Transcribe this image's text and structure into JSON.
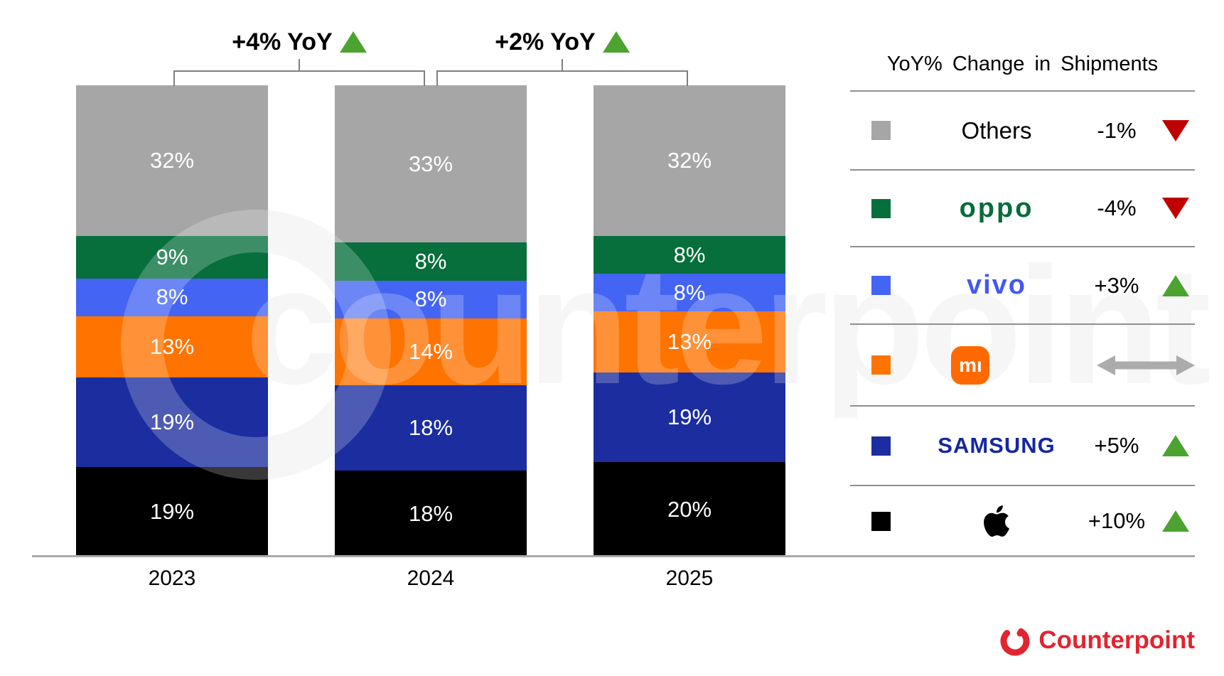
{
  "watermark": {
    "text": "counterpoint"
  },
  "annotations": [
    {
      "label": "+4% YoY",
      "trend": "up"
    },
    {
      "label": "+2% YoY",
      "trend": "up"
    }
  ],
  "chart_data": {
    "type": "bar",
    "stacked": true,
    "unit": "%",
    "title": "",
    "categories": [
      "2023",
      "2024",
      "2025"
    ],
    "series": [
      {
        "name": "Apple",
        "color": "#000000",
        "values": [
          19,
          18,
          20
        ]
      },
      {
        "name": "Samsung",
        "color": "#1B2D9F",
        "values": [
          19,
          18,
          19
        ]
      },
      {
        "name": "Xiaomi",
        "color": "#FF7300",
        "values": [
          13,
          14,
          13
        ]
      },
      {
        "name": "vivo",
        "color": "#4464F4",
        "values": [
          8,
          8,
          8
        ]
      },
      {
        "name": "OPPO",
        "color": "#066F3B",
        "values": [
          9,
          8,
          8
        ]
      },
      {
        "name": "Others",
        "color": "#A6A6A6",
        "values": [
          32,
          33,
          32
        ]
      }
    ],
    "bar_labels_shown": true,
    "yoy_totals": [
      {
        "between": [
          "2023",
          "2024"
        ],
        "label": "+4% YoY",
        "trend": "up"
      },
      {
        "between": [
          "2024",
          "2025"
        ],
        "label": "+2% YoY",
        "trend": "up"
      }
    ],
    "ylim": [
      0,
      100
    ],
    "grid": false,
    "legend_position": "right"
  },
  "legend": {
    "title": "YoY% Change in Shipments",
    "rows": [
      {
        "brand": "Others",
        "logo": "others",
        "logo_text": "Others",
        "swatch": "#A6A6A6",
        "value": "-1%",
        "trend": "down"
      },
      {
        "brand": "OPPO",
        "logo": "oppo",
        "logo_text": "oppo",
        "swatch": "#066F3B",
        "value": "-4%",
        "trend": "down"
      },
      {
        "brand": "vivo",
        "logo": "vivo",
        "logo_text": "vivo",
        "swatch": "#4464F4",
        "value": "+3%",
        "trend": "up"
      },
      {
        "brand": "Xiaomi",
        "logo": "mi",
        "logo_text": "mı",
        "swatch": "#FF7300",
        "value": "",
        "trend": "flat"
      },
      {
        "brand": "Samsung",
        "logo": "samsung",
        "logo_text": "SAMSUNG",
        "swatch": "#1B2D9F",
        "value": "+5%",
        "trend": "up"
      },
      {
        "brand": "Apple",
        "logo": "apple",
        "logo_text": "",
        "swatch": "#000000",
        "value": "+10%",
        "trend": "up"
      }
    ]
  },
  "footer": {
    "brand": "Counterpoint"
  },
  "colors": {
    "trend_up": "#4CA32F",
    "trend_down": "#BE0000",
    "trend_flat_arrow": "#ACACAC",
    "axis_line": "#A9A9A9",
    "bracket_line": "#7F7F7F",
    "legend_rule": "#909090",
    "counterpoint_red": "#E2242F",
    "oppo_green": "#0A6B3C",
    "vivo_blue": "#4159F0",
    "samsung_navy": "#15279E",
    "mi_orange": "#FF6900"
  }
}
